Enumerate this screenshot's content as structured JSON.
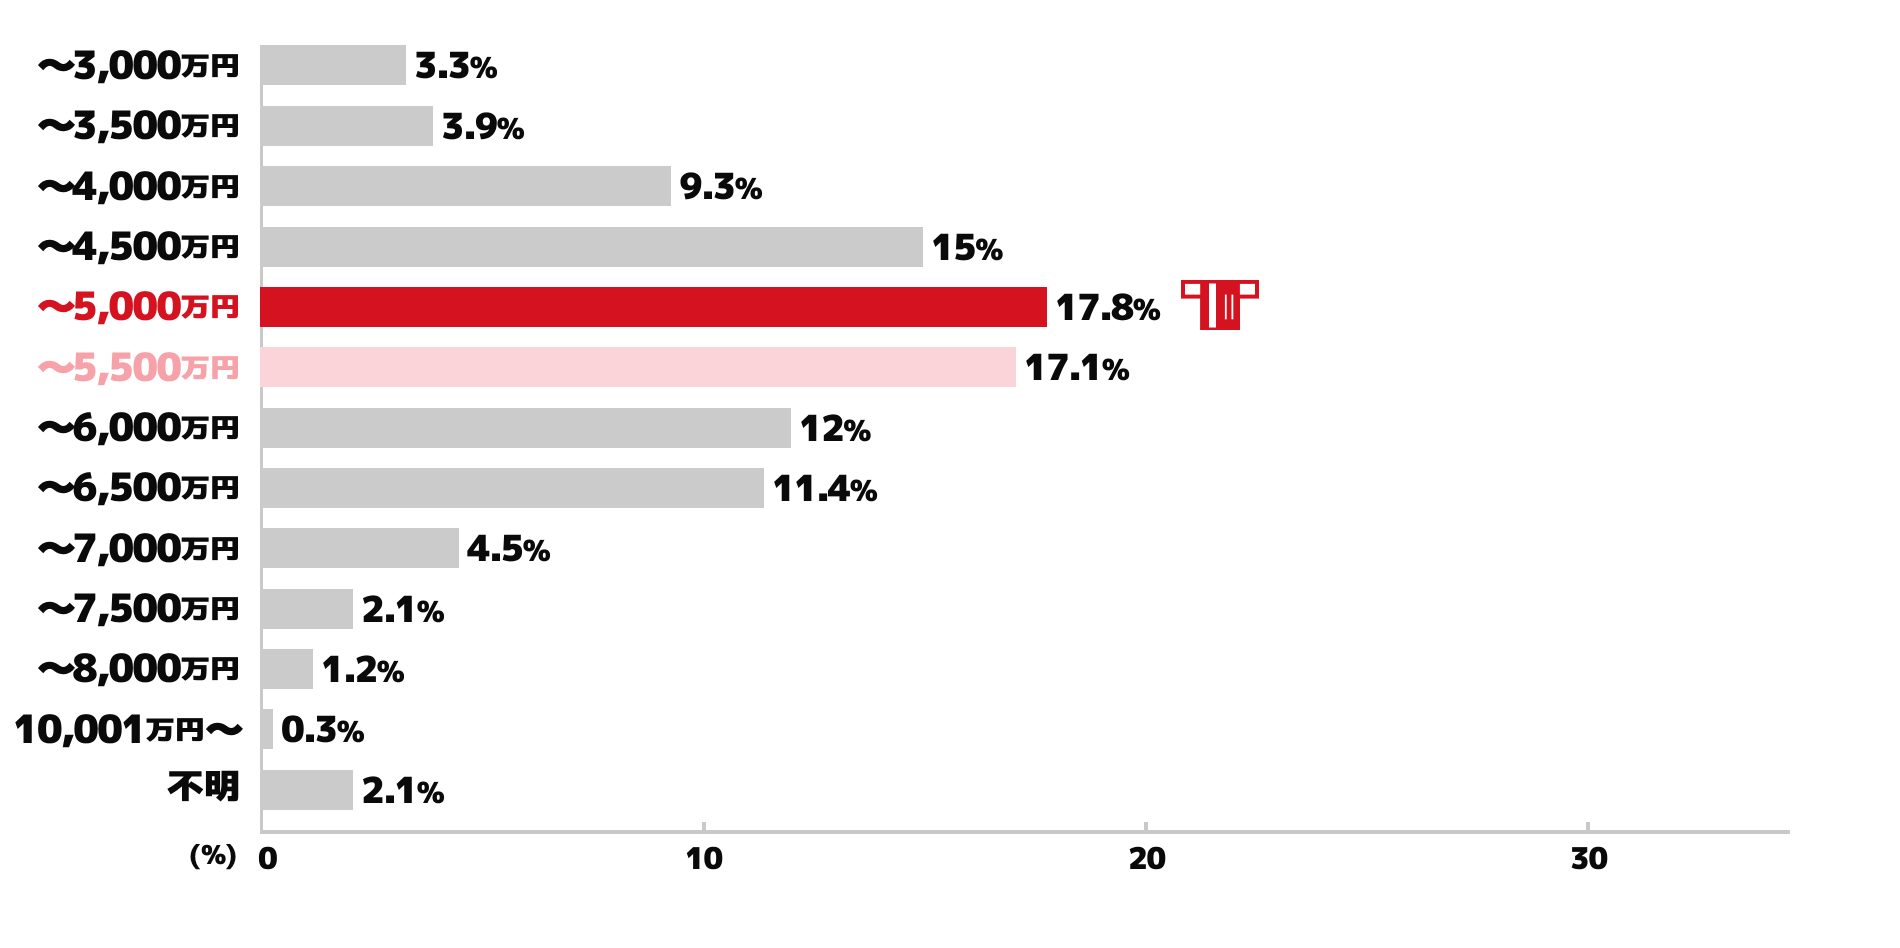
{
  "chart_data": {
    "type": "bar",
    "orientation": "horizontal",
    "title": "",
    "categories": [
      "〜3,000万円",
      "〜3,500万円",
      "〜4,000万円",
      "〜4,500万円",
      "〜5,000万円",
      "〜5,500万円",
      "〜6,000万円",
      "〜6,500万円",
      "〜7,000万円",
      "〜7,500万円",
      "〜8,000万円",
      "10,001万円〜",
      "不明"
    ],
    "values": [
      3.3,
      3.9,
      9.3,
      15,
      17.8,
      17.1,
      12,
      11.4,
      4.5,
      2.1,
      1.2,
      0.3,
      2.1
    ],
    "value_labels": [
      "3.3%",
      "3.9%",
      "9.3%",
      "15%",
      "17.8%",
      "17.1%",
      "12%",
      "11.4%",
      "4.5%",
      "2.1%",
      "1.2%",
      "0.3%",
      "2.1%"
    ],
    "xlabel": "(%)",
    "ylabel": "",
    "x_ticks": [
      0,
      10,
      20,
      30
    ],
    "xlim": [
      0,
      34.6
    ],
    "grid": false,
    "legend_position": "none",
    "highlight_category": "〜5,000万円",
    "soft_highlight_category": "〜5,500万円"
  },
  "rows": [
    {
      "label": "〜3,000万円",
      "label_parts": [
        {
          "t": "〜3,000",
          "role": "num"
        },
        {
          "t": "万円",
          "role": "unit"
        }
      ],
      "value": 3.3,
      "value_number": "3.3",
      "value_suffix": "%",
      "value_label": "3.3%",
      "emphasis": "none"
    },
    {
      "label": "〜3,500万円",
      "label_parts": [
        {
          "t": "〜3,500",
          "role": "num"
        },
        {
          "t": "万円",
          "role": "unit"
        }
      ],
      "value": 3.9,
      "value_number": "3.9",
      "value_suffix": "%",
      "value_label": "3.9%",
      "emphasis": "none"
    },
    {
      "label": "〜4,000万円",
      "label_parts": [
        {
          "t": "〜4,000",
          "role": "num"
        },
        {
          "t": "万円",
          "role": "unit"
        }
      ],
      "value": 9.3,
      "value_number": "9.3",
      "value_suffix": "%",
      "value_label": "9.3%",
      "emphasis": "none"
    },
    {
      "label": "〜4,500万円",
      "label_parts": [
        {
          "t": "〜4,500",
          "role": "num"
        },
        {
          "t": "万円",
          "role": "unit"
        }
      ],
      "value": 15,
      "value_number": "15",
      "value_suffix": "%",
      "value_label": "15%",
      "emphasis": "none"
    },
    {
      "label": "〜5,000万円",
      "label_parts": [
        {
          "t": "〜5,000",
          "role": "num"
        },
        {
          "t": "万円",
          "role": "unit"
        }
      ],
      "value": 17.8,
      "value_number": "17.8",
      "value_suffix": "%",
      "value_label": "17.8%",
      "emphasis": "strong"
    },
    {
      "label": "〜5,500万円",
      "label_parts": [
        {
          "t": "〜5,500",
          "role": "num"
        },
        {
          "t": "万円",
          "role": "unit"
        }
      ],
      "value": 17.1,
      "value_number": "17.1",
      "value_suffix": "%",
      "value_label": "17.1%",
      "emphasis": "soft"
    },
    {
      "label": "〜6,000万円",
      "label_parts": [
        {
          "t": "〜6,000",
          "role": "num"
        },
        {
          "t": "万円",
          "role": "unit"
        }
      ],
      "value": 12,
      "value_number": "12",
      "value_suffix": "%",
      "value_label": "12%",
      "emphasis": "none"
    },
    {
      "label": "〜6,500万円",
      "label_parts": [
        {
          "t": "〜6,500",
          "role": "num"
        },
        {
          "t": "万円",
          "role": "unit"
        }
      ],
      "value": 11.4,
      "value_number": "11.4",
      "value_suffix": "%",
      "value_label": "11.4%",
      "emphasis": "none"
    },
    {
      "label": "〜7,000万円",
      "label_parts": [
        {
          "t": "〜7,000",
          "role": "num"
        },
        {
          "t": "万円",
          "role": "unit"
        }
      ],
      "value": 4.5,
      "value_number": "4.5",
      "value_suffix": "%",
      "value_label": "4.5%",
      "emphasis": "none"
    },
    {
      "label": "〜7,500万円",
      "label_parts": [
        {
          "t": "〜7,500",
          "role": "num"
        },
        {
          "t": "万円",
          "role": "unit"
        }
      ],
      "value": 2.1,
      "value_number": "2.1",
      "value_suffix": "%",
      "value_label": "2.1%",
      "emphasis": "none"
    },
    {
      "label": "〜8,000万円",
      "label_parts": [
        {
          "t": "〜8,000",
          "role": "num"
        },
        {
          "t": "万円",
          "role": "unit"
        }
      ],
      "value": 1.2,
      "value_number": "1.2",
      "value_suffix": "%",
      "value_label": "1.2%",
      "emphasis": "none"
    },
    {
      "label": "10,001万円〜",
      "label_parts": [
        {
          "t": "10,001",
          "role": "num"
        },
        {
          "t": "万円",
          "role": "unit"
        },
        {
          "t": "〜",
          "role": "num"
        }
      ],
      "value": 0.3,
      "value_number": "0.3",
      "value_suffix": "%",
      "value_label": "0.3%",
      "emphasis": "none"
    },
    {
      "label": "不明",
      "label_parts": [
        {
          "t": "不明",
          "role": "kanji"
        }
      ],
      "value": 2.1,
      "value_number": "2.1",
      "value_suffix": "%",
      "value_label": "2.1%",
      "emphasis": "none"
    }
  ],
  "axis": {
    "unit_label": "(%)",
    "ticks": [
      {
        "label": "0",
        "value": 0
      },
      {
        "label": "10",
        "value": 10
      },
      {
        "label": "20",
        "value": 20
      },
      {
        "label": "30",
        "value": 30
      }
    ]
  },
  "icon": {
    "name": "happi-coat-icon",
    "attached_to": "〜5,000万円"
  },
  "colors": {
    "background": "#ffffff",
    "bar_default": "#cbcbcb",
    "bar_strong": "#d5121f",
    "bar_soft": "#fad4d8",
    "label_default": "#0a0a0a",
    "label_strong": "#d5121f",
    "label_soft": "#f6a2a8",
    "value_text": "#0a0a0a",
    "axis": "#c9c9c9",
    "icon": "#d5121f"
  }
}
